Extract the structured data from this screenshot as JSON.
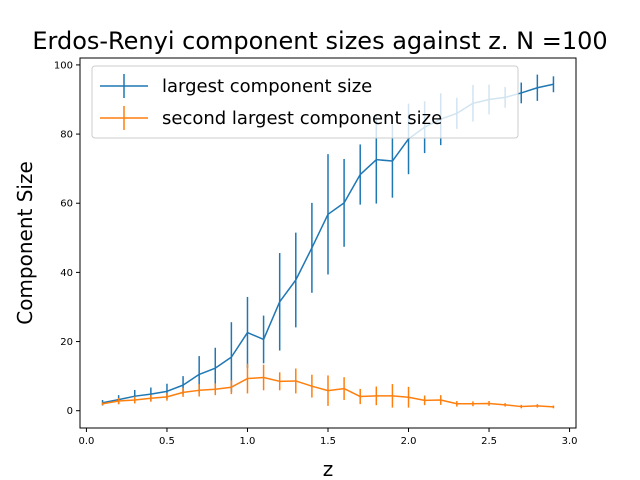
{
  "chart_data": {
    "type": "line",
    "title": "Erdos-Renyi component sizes against z. N =100",
    "xlabel": "z",
    "ylabel": "Component Size",
    "xlim": [
      -0.04,
      3.04
    ],
    "ylim": [
      -5,
      102
    ],
    "xticks": [
      0.0,
      0.5,
      1.0,
      1.5,
      2.0,
      2.5,
      3.0
    ],
    "xtick_labels": [
      "0.0",
      "0.5",
      "1.0",
      "1.5",
      "2.0",
      "2.5",
      "3.0"
    ],
    "yticks": [
      0,
      20,
      40,
      60,
      80,
      100
    ],
    "ytick_labels": [
      "0",
      "20",
      "40",
      "60",
      "80",
      "100"
    ],
    "grid": false,
    "legend_position": "top-left",
    "x": [
      0.1,
      0.2,
      0.3,
      0.4,
      0.5,
      0.6,
      0.7,
      0.8,
      0.9,
      1.0,
      1.1,
      1.2,
      1.3,
      1.4,
      1.5,
      1.6,
      1.7,
      1.8,
      1.9,
      2.0,
      2.1,
      2.2,
      2.3,
      2.4,
      2.5,
      2.6,
      2.7,
      2.8,
      2.9
    ],
    "series": [
      {
        "name": "largest component size",
        "color": "#1f77b4",
        "values": [
          2.3,
          3.2,
          4.2,
          4.8,
          5.6,
          7.4,
          10.5,
          12.3,
          15.5,
          22.6,
          20.6,
          31.5,
          37.8,
          47.1,
          56.8,
          60.1,
          68.3,
          72.6,
          72.2,
          78.6,
          82.0,
          84.3,
          86.0,
          88.9,
          90.0,
          90.6,
          91.9,
          93.4,
          94.4
        ],
        "errors": [
          0.8,
          1.3,
          1.8,
          1.9,
          2.2,
          2.6,
          5.3,
          5.9,
          10.1,
          10.3,
          6.9,
          14.1,
          13.7,
          13.0,
          17.4,
          12.7,
          8.7,
          12.7,
          10.6,
          10.2,
          7.5,
          7.5,
          4.5,
          5.3,
          4.3,
          3.0,
          3.0,
          3.8,
          2.3
        ]
      },
      {
        "name": "second largest component size",
        "color": "#ff7f0e",
        "values": [
          2.0,
          2.8,
          3.1,
          3.6,
          4.0,
          5.3,
          5.9,
          6.2,
          6.8,
          9.3,
          9.6,
          8.5,
          8.6,
          7.1,
          5.8,
          6.4,
          4.1,
          4.3,
          4.3,
          3.9,
          3.0,
          3.1,
          2.0,
          2.0,
          2.1,
          1.7,
          1.2,
          1.4,
          1.1
        ],
        "errors": [
          0.4,
          0.9,
          1.0,
          1.0,
          1.1,
          1.3,
          1.8,
          1.7,
          2.0,
          4.3,
          3.7,
          2.6,
          3.6,
          3.3,
          4.4,
          3.3,
          2.2,
          2.7,
          3.4,
          3.0,
          1.4,
          1.4,
          0.8,
          0.7,
          0.7,
          0.5,
          0.5,
          0.5,
          0.4
        ]
      }
    ]
  }
}
